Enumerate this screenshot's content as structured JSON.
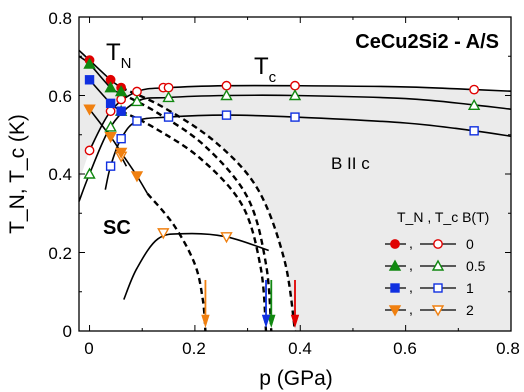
{
  "chart_data": {
    "type": "scatter",
    "title": "CeCu2Si2 - A/S",
    "xlabel": "p (GPa)",
    "ylabel": "T_N, T_c (K)",
    "xlim": [
      -0.02,
      0.8
    ],
    "ylim": [
      0,
      0.8
    ],
    "xticks": [
      "0",
      "0.2",
      "0.4",
      "0.6",
      "0.8"
    ],
    "yticks": [
      "0",
      "0.2",
      "0.4",
      "0.6",
      "0.8"
    ],
    "annotations": {
      "tn": "T",
      "tn_sub": "N",
      "tc": "T",
      "tc_sub": "c",
      "sc": "SC",
      "bc": "B II c"
    },
    "legend": {
      "placement": "lower-right",
      "header": "T_N , T_c B(T)"
    },
    "shaded_region": "superconducting phase (gray)",
    "series": [
      {
        "field": "0",
        "color": "#e00000",
        "tn_points": [
          [
            0.0,
            0.69
          ],
          [
            0.04,
            0.64
          ],
          [
            0.06,
            0.62
          ]
        ],
        "tc_points": [
          [
            0.0,
            0.46
          ],
          [
            0.04,
            0.56
          ],
          [
            0.06,
            0.59
          ],
          [
            0.09,
            0.61
          ],
          [
            0.14,
            0.62
          ],
          [
            0.15,
            0.62
          ],
          [
            0.26,
            0.625
          ],
          [
            0.39,
            0.625
          ],
          [
            0.73,
            0.615
          ]
        ],
        "arrow_x": 0.39
      },
      {
        "field": "0.5",
        "color": "#118811",
        "tn_points": [
          [
            0.0,
            0.68
          ],
          [
            0.04,
            0.62
          ],
          [
            0.06,
            0.61
          ]
        ],
        "tc_points": [
          [
            0.0,
            0.4
          ],
          [
            0.04,
            0.52
          ],
          [
            0.06,
            0.56
          ],
          [
            0.09,
            0.585
          ],
          [
            0.15,
            0.595
          ],
          [
            0.26,
            0.6
          ],
          [
            0.39,
            0.6
          ],
          [
            0.73,
            0.575
          ]
        ],
        "arrow_x": 0.345
      },
      {
        "field": "1",
        "color": "#1030e0",
        "tn_points": [
          [
            0.0,
            0.64
          ],
          [
            0.04,
            0.58
          ],
          [
            0.06,
            0.56
          ]
        ],
        "tc_points": [
          [
            0.04,
            0.42
          ],
          [
            0.06,
            0.49
          ],
          [
            0.09,
            0.535
          ],
          [
            0.15,
            0.545
          ],
          [
            0.26,
            0.55
          ],
          [
            0.39,
            0.545
          ],
          [
            0.73,
            0.51
          ]
        ],
        "arrow_x": 0.335
      },
      {
        "field": "2",
        "color": "#f08010",
        "tn_points": [
          [
            0.0,
            0.565
          ],
          [
            0.04,
            0.495
          ],
          [
            0.06,
            0.455
          ],
          [
            0.09,
            0.395
          ]
        ],
        "tc_points": [
          [
            0.06,
            0.445
          ],
          [
            0.14,
            0.25
          ],
          [
            0.26,
            0.24
          ]
        ],
        "arrow_x": 0.22
      }
    ]
  }
}
